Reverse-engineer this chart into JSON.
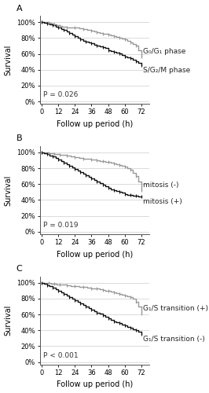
{
  "panels": [
    "A",
    "B",
    "C"
  ],
  "panel_A": {
    "title": "A",
    "pvalue": "P = 0.026",
    "xlabel": "Follow up period (h)",
    "ylabel": "Survival",
    "xticks": [
      0,
      12,
      24,
      36,
      48,
      60,
      72
    ],
    "yticks": [
      0,
      20,
      40,
      60,
      80,
      100
    ],
    "ylim": [
      -3,
      108
    ],
    "xlim": [
      -1,
      78
    ],
    "line1_label": "G₀/G₁ phase",
    "line1_color": "#999999",
    "line2_label": "S/G₂/M phase",
    "line2_color": "#111111",
    "line1_x": [
      0,
      3,
      5,
      7,
      9,
      11,
      13,
      15,
      18,
      21,
      24,
      27,
      30,
      33,
      36,
      38,
      40,
      42,
      44,
      46,
      48,
      50,
      52,
      54,
      56,
      58,
      60,
      62,
      64,
      66,
      68,
      70,
      72
    ],
    "line1_y": [
      100,
      100,
      99,
      98,
      97,
      96,
      95,
      94,
      93,
      93,
      93,
      92,
      91,
      90,
      89,
      88,
      87,
      86,
      85,
      85,
      84,
      83,
      82,
      81,
      80,
      79,
      78,
      76,
      74,
      72,
      70,
      65,
      57
    ],
    "line2_x": [
      0,
      2,
      4,
      6,
      8,
      10,
      12,
      14,
      16,
      18,
      20,
      22,
      24,
      26,
      28,
      30,
      32,
      34,
      36,
      38,
      40,
      42,
      44,
      46,
      48,
      50,
      52,
      54,
      56,
      58,
      60,
      62,
      64,
      66,
      68,
      70,
      72
    ],
    "line2_y": [
      100,
      99,
      98,
      97,
      96,
      94,
      93,
      91,
      90,
      88,
      86,
      84,
      82,
      80,
      78,
      76,
      75,
      74,
      73,
      71,
      70,
      69,
      68,
      67,
      65,
      64,
      63,
      62,
      61,
      59,
      57,
      56,
      55,
      53,
      51,
      49,
      46
    ]
  },
  "panel_B": {
    "title": "B",
    "pvalue": "P = 0.019",
    "xlabel": "Follow up period (h)",
    "ylabel": "Survival",
    "xticks": [
      0,
      12,
      24,
      36,
      48,
      60,
      72
    ],
    "yticks": [
      0,
      20,
      40,
      60,
      80,
      100
    ],
    "ylim": [
      -3,
      108
    ],
    "xlim": [
      -1,
      78
    ],
    "line1_label": "mitosis (-)",
    "line1_color": "#999999",
    "line2_label": "mitosis (+)",
    "line2_color": "#111111",
    "line1_x": [
      0,
      3,
      5,
      7,
      9,
      11,
      13,
      15,
      18,
      21,
      24,
      27,
      30,
      33,
      36,
      38,
      40,
      42,
      44,
      46,
      48,
      50,
      52,
      54,
      56,
      58,
      60,
      62,
      64,
      66,
      68,
      70,
      72
    ],
    "line1_y": [
      100,
      100,
      99,
      99,
      98,
      98,
      97,
      97,
      96,
      95,
      94,
      93,
      92,
      92,
      91,
      91,
      90,
      89,
      89,
      88,
      88,
      87,
      86,
      85,
      84,
      83,
      82,
      80,
      78,
      74,
      70,
      63,
      52
    ],
    "line2_x": [
      0,
      2,
      4,
      6,
      8,
      10,
      12,
      14,
      16,
      18,
      20,
      22,
      24,
      26,
      28,
      30,
      32,
      34,
      36,
      38,
      40,
      42,
      44,
      46,
      48,
      50,
      52,
      54,
      56,
      58,
      60,
      62,
      64,
      66,
      68,
      70,
      72
    ],
    "line2_y": [
      100,
      99,
      98,
      96,
      95,
      93,
      91,
      89,
      87,
      85,
      83,
      81,
      79,
      77,
      75,
      73,
      71,
      69,
      67,
      65,
      63,
      61,
      59,
      57,
      55,
      53,
      52,
      51,
      50,
      49,
      47,
      46,
      46,
      45,
      45,
      44,
      44
    ]
  },
  "panel_C": {
    "title": "C",
    "pvalue": "P < 0.001",
    "xlabel": "Follow up period (h)",
    "ylabel": "Survival",
    "xticks": [
      0,
      12,
      24,
      36,
      48,
      60,
      72
    ],
    "yticks": [
      0,
      20,
      40,
      60,
      80,
      100
    ],
    "ylim": [
      -3,
      108
    ],
    "xlim": [
      -1,
      78
    ],
    "line1_label": "G₁/S transition (+)",
    "line1_color": "#999999",
    "line2_label": "G₁/S transition (-)",
    "line2_color": "#111111",
    "line1_x": [
      0,
      3,
      5,
      7,
      9,
      11,
      13,
      15,
      18,
      21,
      24,
      27,
      30,
      33,
      36,
      38,
      40,
      42,
      44,
      46,
      48,
      50,
      52,
      54,
      56,
      58,
      60,
      62,
      64,
      66,
      68,
      70,
      72
    ],
    "line1_y": [
      100,
      100,
      100,
      99,
      99,
      98,
      98,
      98,
      97,
      96,
      96,
      95,
      95,
      94,
      93,
      93,
      93,
      92,
      91,
      90,
      90,
      89,
      88,
      87,
      86,
      85,
      84,
      83,
      82,
      80,
      76,
      70,
      61
    ],
    "line2_x": [
      0,
      2,
      4,
      6,
      8,
      10,
      12,
      14,
      16,
      18,
      20,
      22,
      24,
      26,
      28,
      30,
      32,
      34,
      36,
      38,
      40,
      42,
      44,
      46,
      48,
      50,
      52,
      54,
      56,
      58,
      60,
      62,
      64,
      66,
      68,
      70,
      72
    ],
    "line2_y": [
      100,
      99,
      97,
      96,
      94,
      92,
      90,
      88,
      86,
      84,
      82,
      80,
      78,
      76,
      74,
      72,
      70,
      68,
      66,
      64,
      62,
      61,
      59,
      57,
      55,
      53,
      51,
      50,
      49,
      47,
      46,
      44,
      43,
      41,
      40,
      38,
      35
    ]
  },
  "bg_color": "#ffffff",
  "line_width": 1.0,
  "tick_fontsize": 6.0,
  "label_fontsize": 7.0,
  "pvalue_fontsize": 6.5,
  "legend_fontsize": 6.5,
  "panel_label_fontsize": 8
}
